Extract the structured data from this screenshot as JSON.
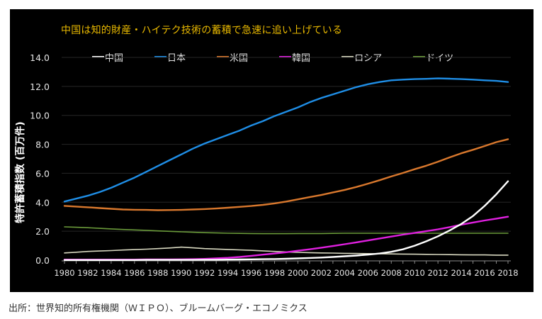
{
  "chart_data": {
    "type": "line",
    "title": "中国は知的財産・ハイテク技術の蓄積で急速に追い上げている",
    "xlabel": "",
    "ylabel": "特許蓄積指数 (百万件)",
    "xlim": [
      1980,
      2018
    ],
    "ylim": [
      0,
      14
    ],
    "yticks": [
      "0.0",
      "2.0",
      "4.0",
      "6.0",
      "8.0",
      "10.0",
      "12.0",
      "14.0"
    ],
    "ytick_values": [
      0,
      2,
      4,
      6,
      8,
      10,
      12,
      14
    ],
    "xticks": [
      "1980",
      "1982",
      "1984",
      "1986",
      "1988",
      "1990",
      "1992",
      "1994",
      "1996",
      "1998",
      "2000",
      "2002",
      "2004",
      "2006",
      "2008",
      "2010",
      "2012",
      "2014",
      "2016",
      "2018"
    ],
    "grid": true,
    "legend_position": "top",
    "x": [
      1980,
      1981,
      1982,
      1983,
      1984,
      1985,
      1986,
      1987,
      1988,
      1989,
      1990,
      1991,
      1992,
      1993,
      1994,
      1995,
      1996,
      1997,
      1998,
      1999,
      2000,
      2001,
      2002,
      2003,
      2004,
      2005,
      2006,
      2007,
      2008,
      2009,
      2010,
      2011,
      2012,
      2013,
      2014,
      2015,
      2016,
      2017,
      2018
    ],
    "series": [
      {
        "name": "中国",
        "color": "#ffffff",
        "values": [
          0.01,
          0.01,
          0.01,
          0.01,
          0.01,
          0.01,
          0.01,
          0.02,
          0.02,
          0.02,
          0.02,
          0.02,
          0.03,
          0.03,
          0.04,
          0.05,
          0.06,
          0.07,
          0.08,
          0.1,
          0.12,
          0.15,
          0.18,
          0.22,
          0.27,
          0.32,
          0.38,
          0.46,
          0.58,
          0.75,
          1.0,
          1.3,
          1.65,
          2.05,
          2.5,
          3.05,
          3.75,
          4.55,
          5.45
        ]
      },
      {
        "name": "日本",
        "color": "#1f8ee6",
        "values": [
          4.05,
          4.25,
          4.45,
          4.7,
          5.0,
          5.35,
          5.7,
          6.1,
          6.5,
          6.9,
          7.3,
          7.7,
          8.05,
          8.35,
          8.65,
          8.95,
          9.3,
          9.6,
          9.95,
          10.25,
          10.55,
          10.9,
          11.2,
          11.45,
          11.7,
          11.95,
          12.15,
          12.3,
          12.42,
          12.47,
          12.5,
          12.52,
          12.55,
          12.53,
          12.5,
          12.47,
          12.42,
          12.38,
          12.3
        ]
      },
      {
        "name": "米国",
        "color": "#d9782d",
        "values": [
          3.75,
          3.7,
          3.65,
          3.6,
          3.55,
          3.5,
          3.48,
          3.47,
          3.45,
          3.46,
          3.47,
          3.5,
          3.53,
          3.57,
          3.62,
          3.68,
          3.74,
          3.82,
          3.92,
          4.05,
          4.2,
          4.35,
          4.5,
          4.68,
          4.85,
          5.05,
          5.28,
          5.52,
          5.78,
          6.02,
          6.28,
          6.52,
          6.8,
          7.1,
          7.38,
          7.62,
          7.88,
          8.15,
          8.35
        ]
      },
      {
        "name": "韓国",
        "color": "#e020e0",
        "values": [
          0.04,
          0.04,
          0.04,
          0.04,
          0.04,
          0.04,
          0.04,
          0.05,
          0.05,
          0.05,
          0.06,
          0.07,
          0.09,
          0.12,
          0.16,
          0.22,
          0.3,
          0.38,
          0.46,
          0.55,
          0.65,
          0.75,
          0.86,
          0.98,
          1.1,
          1.23,
          1.36,
          1.5,
          1.63,
          1.76,
          1.88,
          2.0,
          2.13,
          2.28,
          2.45,
          2.6,
          2.74,
          2.87,
          3.0
        ]
      },
      {
        "name": "ロシア",
        "color": "#d8d8c0",
        "values": [
          0.5,
          0.55,
          0.6,
          0.63,
          0.66,
          0.7,
          0.73,
          0.76,
          0.8,
          0.84,
          0.9,
          0.85,
          0.8,
          0.77,
          0.74,
          0.71,
          0.68,
          0.64,
          0.6,
          0.57,
          0.54,
          0.52,
          0.5,
          0.49,
          0.47,
          0.46,
          0.45,
          0.44,
          0.43,
          0.42,
          0.41,
          0.4,
          0.39,
          0.38,
          0.37,
          0.36,
          0.36,
          0.35,
          0.35
        ]
      },
      {
        "name": "ドイツ",
        "color": "#6a9a3a",
        "values": [
          2.3,
          2.27,
          2.24,
          2.2,
          2.16,
          2.12,
          2.09,
          2.06,
          2.02,
          1.99,
          1.96,
          1.93,
          1.9,
          1.88,
          1.86,
          1.85,
          1.84,
          1.83,
          1.83,
          1.83,
          1.84,
          1.84,
          1.84,
          1.85,
          1.86,
          1.86,
          1.86,
          1.86,
          1.86,
          1.86,
          1.86,
          1.86,
          1.86,
          1.86,
          1.86,
          1.86,
          1.86,
          1.86,
          1.86
        ]
      }
    ]
  },
  "source": "出所：世界知的所有権機関（ＷＩＰＯ）、ブルームバーグ・エコノミクス"
}
